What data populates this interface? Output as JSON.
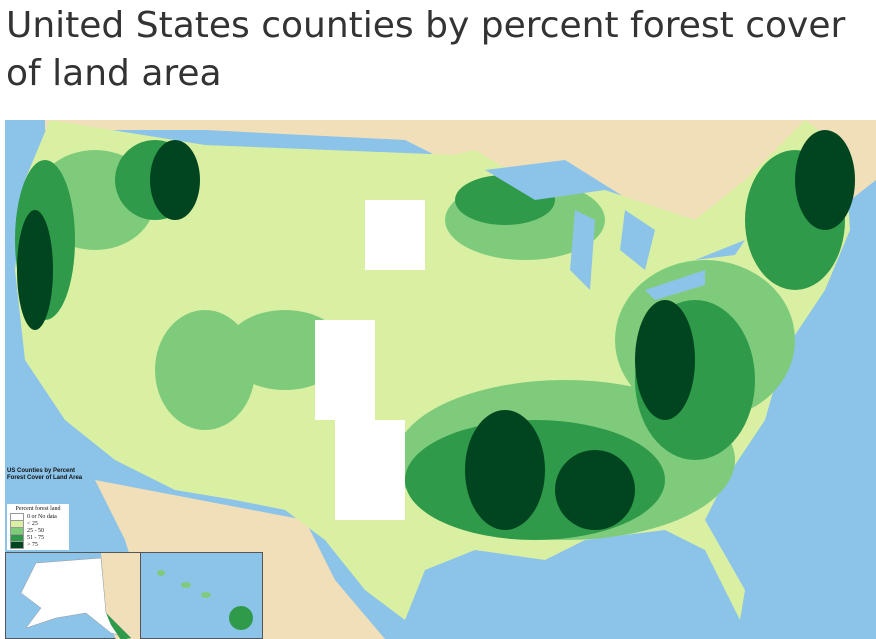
{
  "page": {
    "title": "United States counties by percent forest cover of land area"
  },
  "map": {
    "title_line1": "US Counties by Percent",
    "title_line2": "Forest Cover of Land Area",
    "colors": {
      "water": "#8cc3e8",
      "non_us_land": "#f0dfb8"
    },
    "legend": {
      "title": "Percent forest land",
      "items": [
        {
          "label": "0 or No data",
          "color": "#ffffff"
        },
        {
          "label": "< 25",
          "color": "#d9f0a3"
        },
        {
          "label": "25 - 50",
          "color": "#7fcb7c"
        },
        {
          "label": "51 - 75",
          "color": "#2f9a4a"
        },
        {
          "label": "> 75",
          "color": "#00451f"
        }
      ]
    }
  }
}
